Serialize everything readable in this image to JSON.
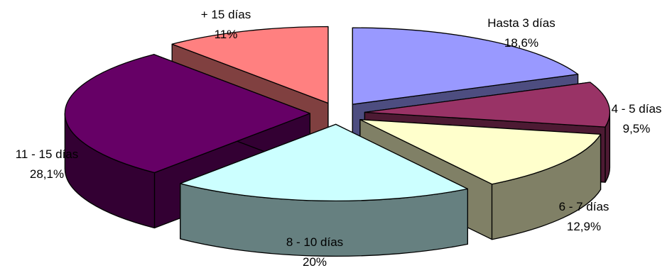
{
  "chart_data": {
    "type": "pie",
    "style": "3d-exploded",
    "categories": [
      "Hasta 3 días",
      "4 - 5 días",
      "6 - 7 días",
      "8 - 10 días",
      "11 - 15 días",
      "+ 15 días"
    ],
    "values": [
      18.6,
      9.5,
      12.9,
      20,
      28.1,
      11
    ],
    "value_labels": [
      "18,6%",
      "9,5%",
      "12,9%",
      "20%",
      "28,1%",
      "11%"
    ],
    "colors": [
      "#9999FF",
      "#993366",
      "#FFFFCC",
      "#CCFFFF",
      "#660066",
      "#FF8080"
    ],
    "side_colors": [
      "#4D4D80",
      "#4D1A33",
      "#808066",
      "#668080",
      "#330033",
      "#804040"
    ],
    "title": "",
    "legend": "none",
    "data_labels": "category-and-percent"
  }
}
